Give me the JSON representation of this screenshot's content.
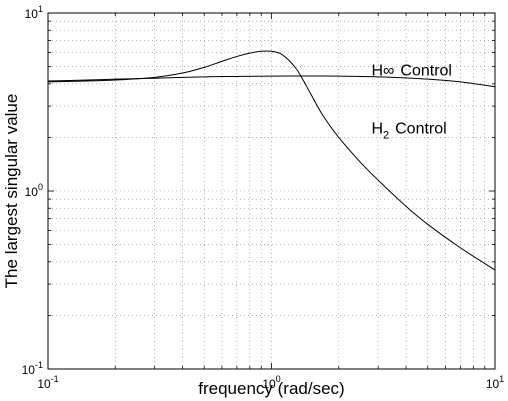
{
  "chart_data": {
    "type": "line",
    "xscale": "log",
    "yscale": "log",
    "xlim": [
      0.1,
      10
    ],
    "ylim": [
      0.1,
      10
    ],
    "grid": true,
    "grid_style": "dotted",
    "xlabel": "frequency (rad/sec)",
    "ylabel": "The largest singular value",
    "x_ticks": [
      {
        "value": 0.1,
        "base": "10",
        "exp": "-1"
      },
      {
        "value": 1,
        "base": "10",
        "exp": "0"
      },
      {
        "value": 10,
        "base": "10",
        "exp": "1"
      }
    ],
    "y_ticks": [
      {
        "value": 0.1,
        "base": "10",
        "exp": "-1"
      },
      {
        "value": 1,
        "base": "10",
        "exp": "0"
      },
      {
        "value": 10,
        "base": "10",
        "exp": "1"
      }
    ],
    "series": [
      {
        "name": "H∞ Control",
        "label_main": "H∞",
        "label_suffix": "Control",
        "label_at": [
          2.8,
          4.45
        ],
        "points": [
          [
            0.1,
            4.15
          ],
          [
            0.15,
            4.2
          ],
          [
            0.2,
            4.25
          ],
          [
            0.3,
            4.3
          ],
          [
            0.5,
            4.38
          ],
          [
            0.7,
            4.4
          ],
          [
            1.0,
            4.42
          ],
          [
            1.5,
            4.43
          ],
          [
            2.0,
            4.42
          ],
          [
            3.0,
            4.38
          ],
          [
            5.0,
            4.25
          ],
          [
            7.0,
            4.1
          ],
          [
            10.0,
            3.85
          ]
        ]
      },
      {
        "name": "H2 Control",
        "label_main": "H",
        "label_sub": "2",
        "label_suffix": "Control",
        "label_at": [
          2.8,
          2.1
        ],
        "points": [
          [
            0.1,
            4.1
          ],
          [
            0.15,
            4.15
          ],
          [
            0.2,
            4.2
          ],
          [
            0.3,
            4.35
          ],
          [
            0.4,
            4.6
          ],
          [
            0.5,
            4.95
          ],
          [
            0.6,
            5.35
          ],
          [
            0.7,
            5.7
          ],
          [
            0.8,
            5.95
          ],
          [
            0.9,
            6.1
          ],
          [
            1.0,
            6.1
          ],
          [
            1.1,
            5.9
          ],
          [
            1.2,
            5.4
          ],
          [
            1.3,
            4.8
          ],
          [
            1.4,
            4.1
          ],
          [
            1.5,
            3.5
          ],
          [
            1.7,
            2.65
          ],
          [
            2.0,
            2.0
          ],
          [
            2.5,
            1.45
          ],
          [
            3.0,
            1.15
          ],
          [
            4.0,
            0.82
          ],
          [
            5.0,
            0.65
          ],
          [
            7.0,
            0.48
          ],
          [
            10.0,
            0.36
          ]
        ]
      }
    ]
  }
}
